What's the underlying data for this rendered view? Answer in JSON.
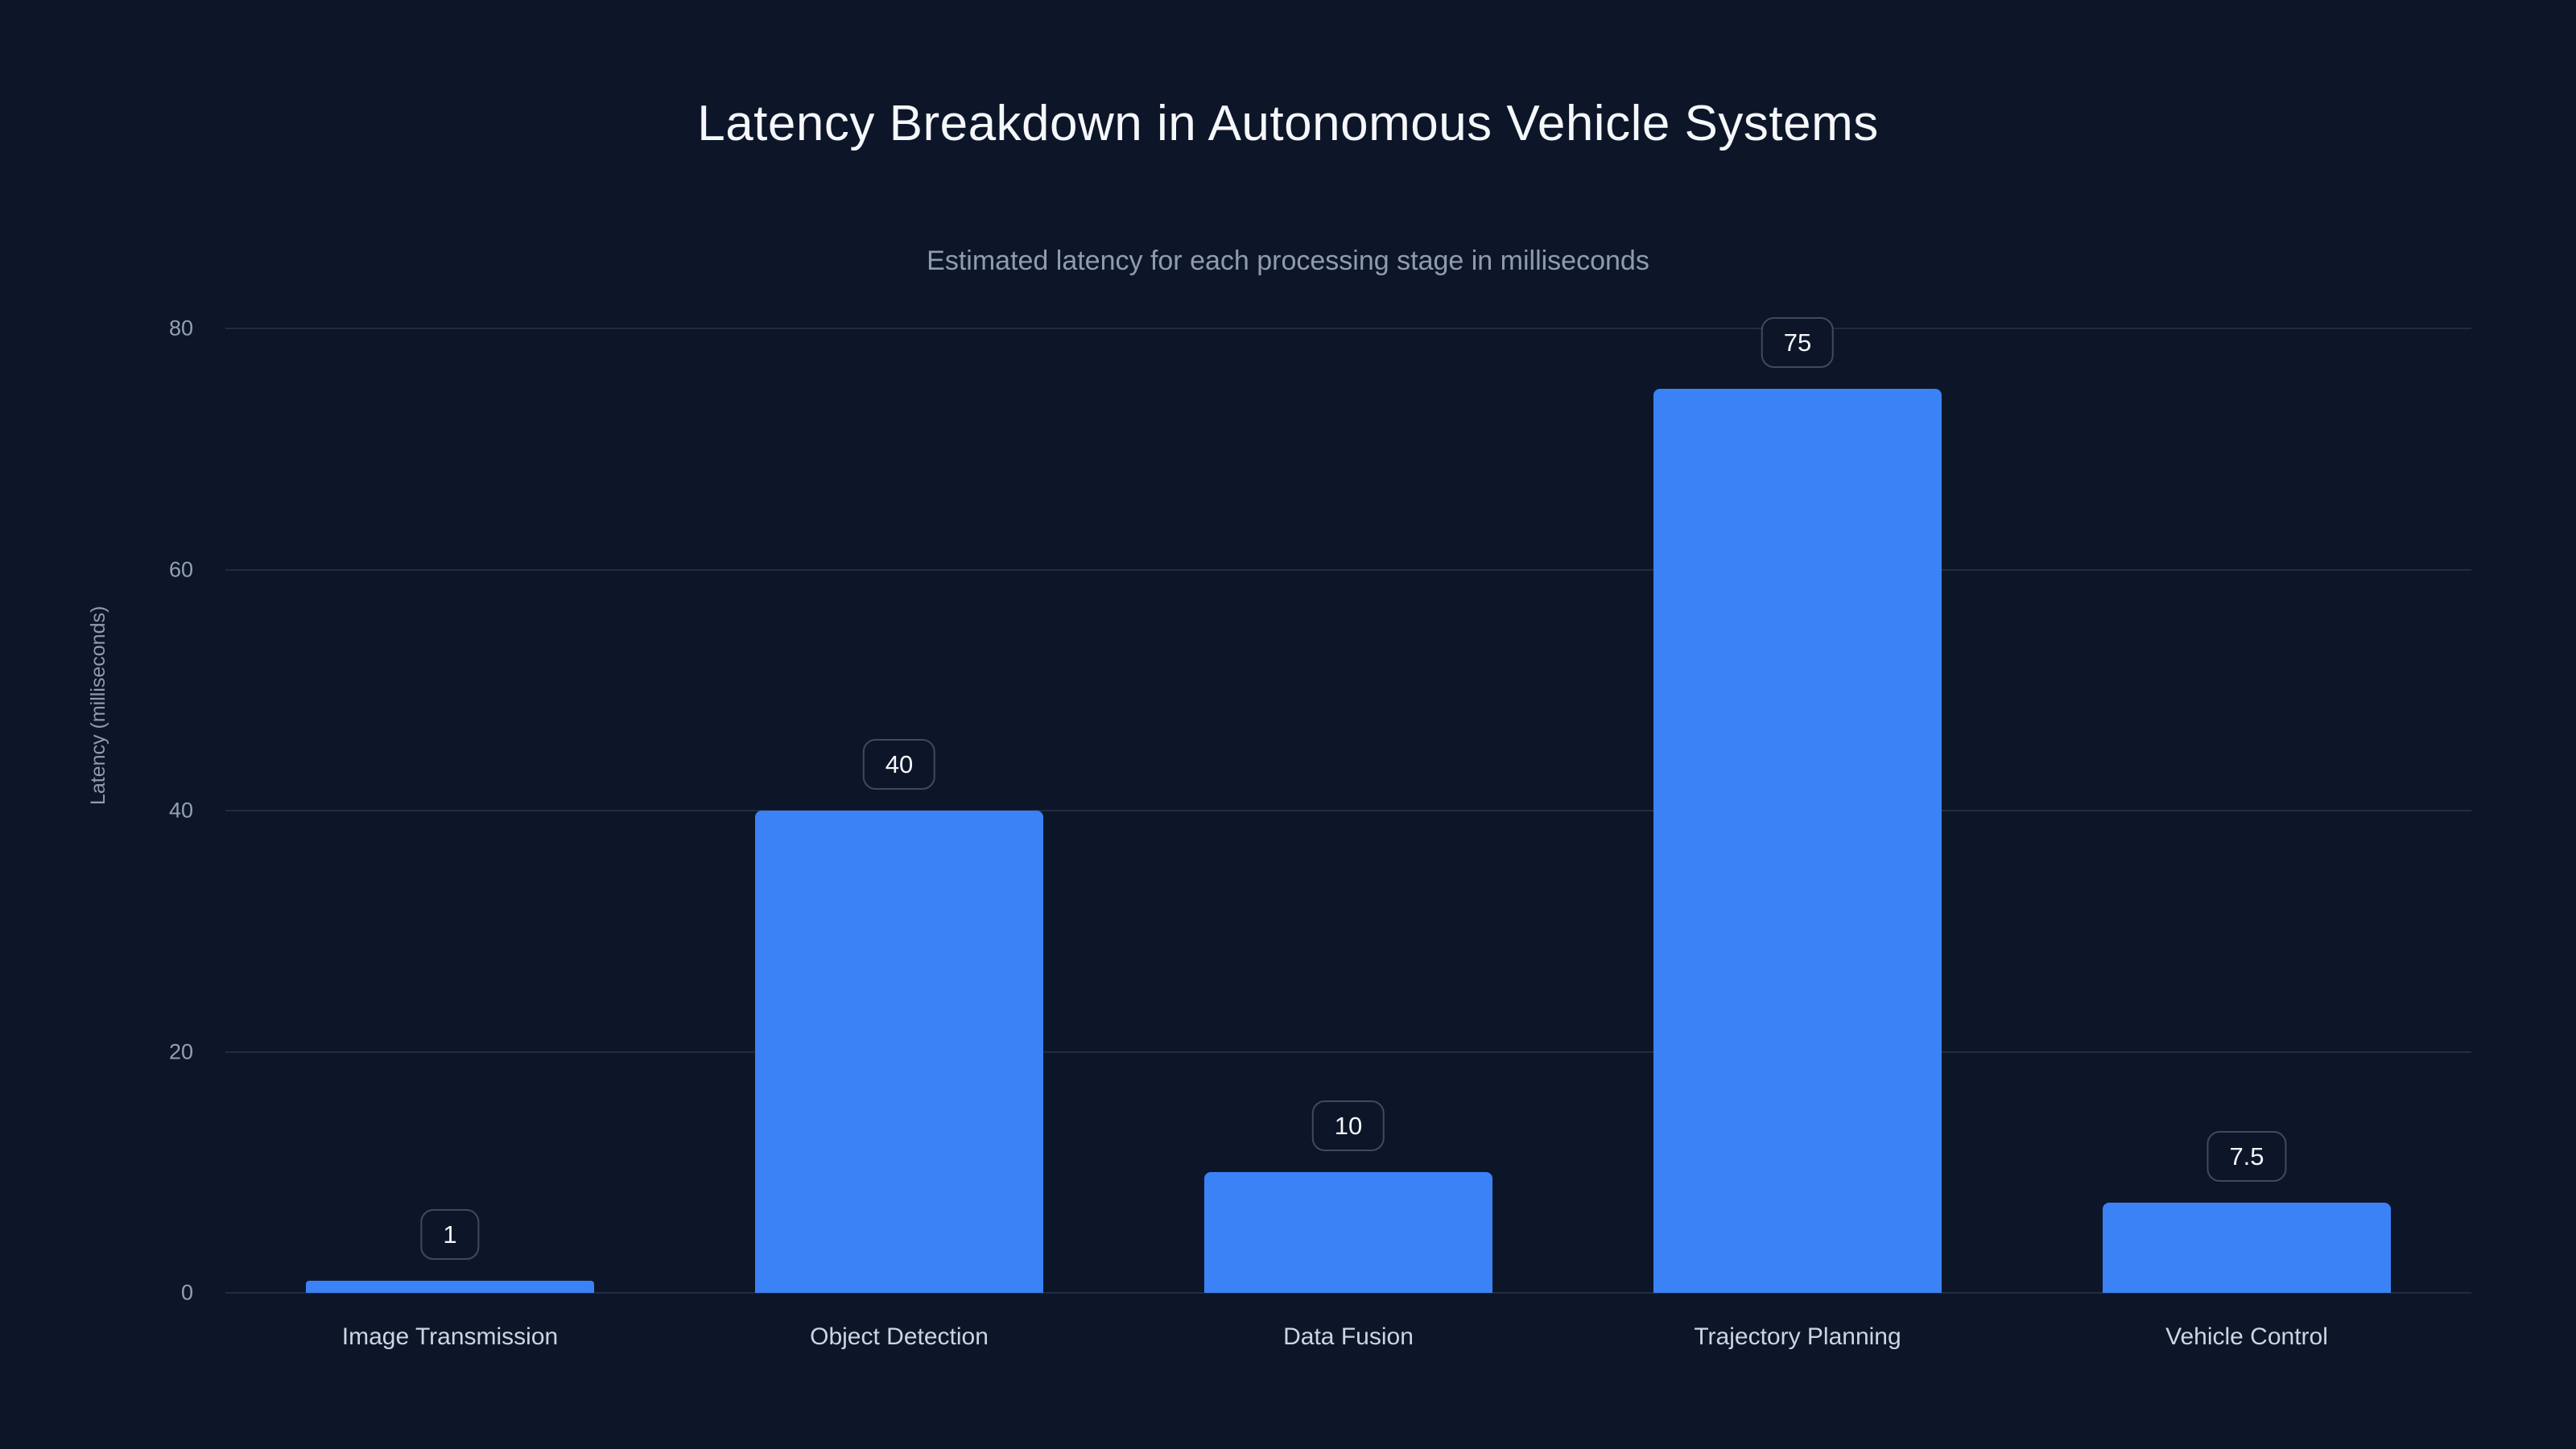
{
  "chart_data": {
    "type": "bar",
    "title": "Latency Breakdown in Autonomous Vehicle Systems",
    "subtitle": "Estimated latency for each processing stage in milliseconds",
    "categories": [
      "Image Transmission",
      "Object Detection",
      "Data Fusion",
      "Trajectory Planning",
      "Vehicle Control"
    ],
    "values": [
      1,
      40,
      10,
      75,
      7.5
    ],
    "value_labels": [
      "1",
      "40",
      "10",
      "75",
      "7.5"
    ],
    "xlabel": "",
    "ylabel": "Latency (milliseconds)",
    "ylim": [
      0,
      80
    ],
    "yticks": [
      0,
      20,
      40,
      60,
      80
    ],
    "grid": true,
    "legend": "none",
    "bar_color": "#3b82f6",
    "background_color": "#0d1629"
  }
}
